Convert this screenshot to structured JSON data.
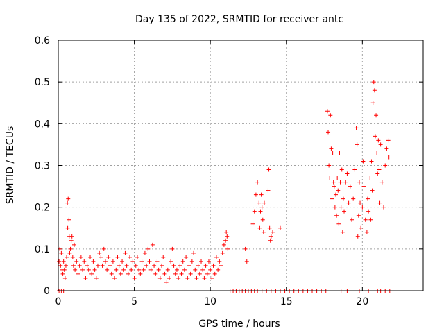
{
  "chart_data": {
    "type": "scatter",
    "title": "Day 135 of 2022, SRMTID for receiver antc",
    "xlabel": "GPS time / hours",
    "ylabel": "SRMTID / TECUs",
    "xlim": [
      0,
      24
    ],
    "ylim": [
      0,
      0.6
    ],
    "xticks": [
      0,
      5,
      10,
      15,
      20
    ],
    "xtick_labels": [
      "0",
      "5",
      "10",
      "15",
      "20"
    ],
    "yticks": [
      0,
      0.1,
      0.2,
      0.3,
      0.4,
      0.5,
      0.6
    ],
    "ytick_labels": [
      "0",
      "0.1",
      "0.2",
      "0.3",
      "0.4",
      "0.5",
      "0.6"
    ],
    "grid": true,
    "marker": "+",
    "color": "#ff0000",
    "series": [
      {
        "name": "SRMTID",
        "points": [
          [
            0.05,
            0.07
          ],
          [
            0.1,
            0.1
          ],
          [
            0.15,
            0.06
          ],
          [
            0.2,
            0.09
          ],
          [
            0.25,
            0.05
          ],
          [
            0.3,
            0.04
          ],
          [
            0.35,
            0.07
          ],
          [
            0.4,
            0.05
          ],
          [
            0.45,
            0.03
          ],
          [
            0.5,
            0.06
          ],
          [
            0.55,
            0.08
          ],
          [
            0.6,
            0.21
          ],
          [
            0.62,
            0.15
          ],
          [
            0.65,
            0.22
          ],
          [
            0.7,
            0.17
          ],
          [
            0.72,
            0.13
          ],
          [
            0.75,
            0.09
          ],
          [
            0.8,
            0.1
          ],
          [
            0.85,
            0.12
          ],
          [
            0.9,
            0.13
          ],
          [
            0.95,
            0.08
          ],
          [
            1.0,
            0.06
          ],
          [
            1.05,
            0.11
          ],
          [
            1.1,
            0.05
          ],
          [
            1.2,
            0.07
          ],
          [
            1.3,
            0.04
          ],
          [
            1.4,
            0.06
          ],
          [
            1.5,
            0.08
          ],
          [
            1.6,
            0.05
          ],
          [
            1.7,
            0.07
          ],
          [
            1.8,
            0.03
          ],
          [
            1.9,
            0.06
          ],
          [
            2.0,
            0.05
          ],
          [
            2.1,
            0.08
          ],
          [
            2.2,
            0.04
          ],
          [
            2.3,
            0.07
          ],
          [
            2.4,
            0.05
          ],
          [
            2.5,
            0.03
          ],
          [
            2.6,
            0.06
          ],
          [
            2.7,
            0.09
          ],
          [
            2.8,
            0.08
          ],
          [
            2.9,
            0.06
          ],
          [
            3.0,
            0.1
          ],
          [
            3.1,
            0.07
          ],
          [
            3.2,
            0.05
          ],
          [
            3.3,
            0.08
          ],
          [
            3.4,
            0.06
          ],
          [
            3.5,
            0.04
          ],
          [
            3.6,
            0.07
          ],
          [
            3.7,
            0.03
          ],
          [
            3.8,
            0.05
          ],
          [
            3.9,
            0.08
          ],
          [
            4.0,
            0.06
          ],
          [
            4.1,
            0.04
          ],
          [
            4.2,
            0.07
          ],
          [
            4.3,
            0.05
          ],
          [
            4.4,
            0.09
          ],
          [
            4.5,
            0.06
          ],
          [
            4.6,
            0.04
          ],
          [
            4.7,
            0.08
          ],
          [
            4.8,
            0.05
          ],
          [
            4.9,
            0.07
          ],
          [
            5.0,
            0.03
          ],
          [
            5.1,
            0.06
          ],
          [
            5.2,
            0.08
          ],
          [
            5.3,
            0.05
          ],
          [
            5.4,
            0.04
          ],
          [
            5.5,
            0.07
          ],
          [
            5.6,
            0.05
          ],
          [
            5.7,
            0.09
          ],
          [
            5.8,
            0.06
          ],
          [
            5.9,
            0.1
          ],
          [
            6.0,
            0.07
          ],
          [
            6.1,
            0.05
          ],
          [
            6.2,
            0.11
          ],
          [
            6.3,
            0.06
          ],
          [
            6.4,
            0.04
          ],
          [
            6.5,
            0.07
          ],
          [
            6.6,
            0.05
          ],
          [
            6.7,
            0.03
          ],
          [
            6.8,
            0.06
          ],
          [
            6.9,
            0.08
          ],
          [
            7.0,
            0.04
          ],
          [
            7.1,
            0.02
          ],
          [
            7.2,
            0.05
          ],
          [
            7.3,
            0.03
          ],
          [
            7.4,
            0.07
          ],
          [
            7.5,
            0.1
          ],
          [
            7.6,
            0.06
          ],
          [
            7.7,
            0.04
          ],
          [
            7.8,
            0.05
          ],
          [
            7.9,
            0.03
          ],
          [
            8.0,
            0.06
          ],
          [
            8.1,
            0.04
          ],
          [
            8.2,
            0.07
          ],
          [
            8.3,
            0.05
          ],
          [
            8.4,
            0.08
          ],
          [
            8.5,
            0.03
          ],
          [
            8.6,
            0.06
          ],
          [
            8.7,
            0.04
          ],
          [
            8.8,
            0.07
          ],
          [
            8.9,
            0.09
          ],
          [
            9.0,
            0.05
          ],
          [
            9.1,
            0.03
          ],
          [
            9.2,
            0.06
          ],
          [
            9.3,
            0.04
          ],
          [
            9.4,
            0.07
          ],
          [
            9.5,
            0.05
          ],
          [
            9.6,
            0.03
          ],
          [
            9.7,
            0.06
          ],
          [
            9.8,
            0.04
          ],
          [
            9.9,
            0.07
          ],
          [
            10.0,
            0.05
          ],
          [
            10.1,
            0.03
          ],
          [
            10.2,
            0.06
          ],
          [
            10.3,
            0.04
          ],
          [
            10.4,
            0.08
          ],
          [
            10.5,
            0.05
          ],
          [
            10.6,
            0.07
          ],
          [
            10.7,
            0.06
          ],
          [
            10.8,
            0.09
          ],
          [
            10.9,
            0.11
          ],
          [
            11.0,
            0.12
          ],
          [
            11.05,
            0.14
          ],
          [
            11.1,
            0.13
          ],
          [
            11.15,
            0.1
          ],
          [
            12.3,
            0.1
          ],
          [
            12.4,
            0.07
          ],
          [
            12.8,
            0.16
          ],
          [
            12.9,
            0.19
          ],
          [
            13.0,
            0.23
          ],
          [
            13.1,
            0.26
          ],
          [
            13.2,
            0.21
          ],
          [
            13.25,
            0.15
          ],
          [
            13.3,
            0.19
          ],
          [
            13.35,
            0.23
          ],
          [
            13.4,
            0.2
          ],
          [
            13.45,
            0.17
          ],
          [
            13.5,
            0.14
          ],
          [
            13.55,
            0.21
          ],
          [
            13.8,
            0.24
          ],
          [
            13.85,
            0.29
          ],
          [
            13.9,
            0.15
          ],
          [
            13.95,
            0.12
          ],
          [
            14.0,
            0.13
          ],
          [
            14.1,
            0.14
          ],
          [
            14.6,
            0.15
          ],
          [
            17.7,
            0.43
          ],
          [
            17.75,
            0.38
          ],
          [
            17.8,
            0.3
          ],
          [
            17.85,
            0.27
          ],
          [
            17.9,
            0.42
          ],
          [
            17.95,
            0.34
          ],
          [
            18.0,
            0.22
          ],
          [
            18.05,
            0.33
          ],
          [
            18.1,
            0.26
          ],
          [
            18.15,
            0.25
          ],
          [
            18.2,
            0.2
          ],
          [
            18.25,
            0.23
          ],
          [
            18.3,
            0.18
          ],
          [
            18.35,
            0.27
          ],
          [
            18.4,
            0.24
          ],
          [
            18.45,
            0.16
          ],
          [
            18.5,
            0.33
          ],
          [
            18.55,
            0.26
          ],
          [
            18.6,
            0.2
          ],
          [
            18.65,
            0.29
          ],
          [
            18.7,
            0.14
          ],
          [
            18.75,
            0.22
          ],
          [
            18.8,
            0.19
          ],
          [
            18.9,
            0.26
          ],
          [
            19.0,
            0.28
          ],
          [
            19.1,
            0.21
          ],
          [
            19.2,
            0.25
          ],
          [
            19.3,
            0.17
          ],
          [
            19.4,
            0.22
          ],
          [
            19.5,
            0.29
          ],
          [
            19.6,
            0.39
          ],
          [
            19.65,
            0.35
          ],
          [
            19.7,
            0.13
          ],
          [
            19.75,
            0.18
          ],
          [
            19.8,
            0.26
          ],
          [
            19.85,
            0.21
          ],
          [
            19.9,
            0.15
          ],
          [
            20.0,
            0.2
          ],
          [
            20.05,
            0.31
          ],
          [
            20.1,
            0.25
          ],
          [
            20.2,
            0.17
          ],
          [
            20.3,
            0.14
          ],
          [
            20.35,
            0.22
          ],
          [
            20.4,
            0.19
          ],
          [
            20.5,
            0.27
          ],
          [
            20.55,
            0.17
          ],
          [
            20.6,
            0.31
          ],
          [
            20.65,
            0.24
          ],
          [
            20.7,
            0.45
          ],
          [
            20.75,
            0.5
          ],
          [
            20.8,
            0.48
          ],
          [
            20.85,
            0.37
          ],
          [
            20.9,
            0.42
          ],
          [
            20.95,
            0.33
          ],
          [
            21.0,
            0.28
          ],
          [
            21.05,
            0.36
          ],
          [
            21.1,
            0.29
          ],
          [
            21.15,
            0.21
          ],
          [
            21.2,
            0.35
          ],
          [
            21.3,
            0.26
          ],
          [
            21.4,
            0.2
          ],
          [
            21.5,
            0.3
          ],
          [
            21.6,
            0.34
          ],
          [
            21.7,
            0.36
          ],
          [
            21.75,
            0.32
          ],
          [
            0.05,
            0
          ],
          [
            0.2,
            0
          ],
          [
            0.35,
            0
          ],
          [
            11.3,
            0
          ],
          [
            11.5,
            0
          ],
          [
            11.7,
            0
          ],
          [
            11.9,
            0
          ],
          [
            12.1,
            0
          ],
          [
            12.3,
            0
          ],
          [
            12.5,
            0
          ],
          [
            12.7,
            0
          ],
          [
            12.9,
            0
          ],
          [
            13.1,
            0
          ],
          [
            13.4,
            0
          ],
          [
            13.7,
            0
          ],
          [
            14.0,
            0
          ],
          [
            14.3,
            0
          ],
          [
            14.6,
            0
          ],
          [
            14.9,
            0
          ],
          [
            15.2,
            0
          ],
          [
            15.5,
            0
          ],
          [
            15.8,
            0
          ],
          [
            16.1,
            0
          ],
          [
            16.4,
            0
          ],
          [
            16.7,
            0
          ],
          [
            17.0,
            0
          ],
          [
            17.3,
            0
          ],
          [
            17.6,
            0
          ],
          [
            18.6,
            0
          ],
          [
            19.0,
            0
          ],
          [
            19.8,
            0
          ],
          [
            20.4,
            0
          ],
          [
            21.0,
            0
          ],
          [
            21.2,
            0
          ],
          [
            21.5,
            0
          ],
          [
            21.8,
            0
          ]
        ]
      }
    ]
  }
}
